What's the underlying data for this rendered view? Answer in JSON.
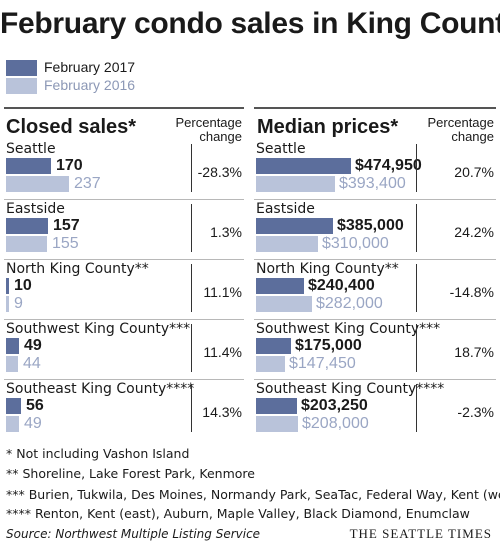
{
  "chart_data": {
    "type": "bar",
    "title": "February condo sales in King County",
    "legend": [
      "February 2017",
      "February 2016"
    ],
    "legend_placement": "top-left",
    "colors": {
      "y2017": "#5c6e9c",
      "y2016": "#b9c3da"
    },
    "panels": [
      {
        "heading": "Closed sales*",
        "pct_label": "Percentage change",
        "rows": [
          {
            "region": "Seattle",
            "v2017": 170,
            "v2016": 237,
            "label2017": "170",
            "label2016": "237",
            "change": "-28.3%"
          },
          {
            "region": "Eastside",
            "v2017": 157,
            "v2016": 155,
            "label2017": "157",
            "label2016": "155",
            "change": "1.3%"
          },
          {
            "region": "North King County**",
            "v2017": 10,
            "v2016": 9,
            "label2017": "10",
            "label2016": "9",
            "change": "11.1%"
          },
          {
            "region": "Southwest King County***",
            "v2017": 49,
            "v2016": 44,
            "label2017": "49",
            "label2016": "44",
            "change": "11.4%"
          },
          {
            "region": "Southeast King County****",
            "v2017": 56,
            "v2016": 49,
            "label2017": "56",
            "label2016": "49",
            "change": "14.3%"
          }
        ]
      },
      {
        "heading": "Median prices*",
        "pct_label": "Percentage change",
        "rows": [
          {
            "region": "Seattle",
            "v2017": 474950,
            "v2016": 393400,
            "label2017": "$474,950",
            "label2016": "$393,400",
            "change": "20.7%"
          },
          {
            "region": "Eastside",
            "v2017": 385000,
            "v2016": 310000,
            "label2017": "$385,000",
            "label2016": "$310,000",
            "change": "24.2%"
          },
          {
            "region": "North King County**",
            "v2017": 240400,
            "v2016": 282000,
            "label2017": "$240,400",
            "label2016": "$282,000",
            "change": "-14.8%"
          },
          {
            "region": "Southwest King County***",
            "v2017": 175000,
            "v2016": 147450,
            "label2017": "$175,000",
            "label2016": "$147,450",
            "change": "18.7%"
          },
          {
            "region": "Southeast King County****",
            "v2017": 203250,
            "v2016": 208000,
            "label2017": "$203,250",
            "label2016": "$208,000",
            "change": "-2.3%"
          }
        ]
      }
    ]
  },
  "notes": [
    "* Not including Vashon Island",
    "** Shoreline, Lake Forest Park, Kenmore",
    "*** Burien, Tukwila, Des Moines, Normandy Park, SeaTac, Federal Way, Kent (west)",
    "**** Renton, Kent (east), Auburn, Maple Valley, Black Diamond, Enumclaw"
  ],
  "source": "Source: Northwest Multiple Listing Service",
  "brand": "THE SEATTLE TIMES"
}
